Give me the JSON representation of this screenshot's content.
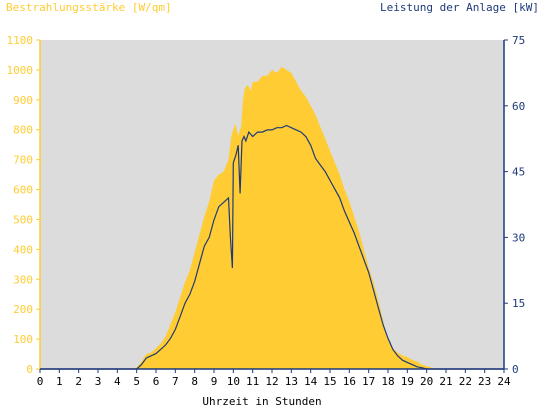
{
  "chart_data": {
    "type": "area",
    "title": "",
    "xlabel": "Uhrzeit in Stunden",
    "y_left_label": "Bestrahlungsstärke [W/qm]",
    "y_right_label": "Leistung der Anlage [kW]",
    "xlim": [
      0,
      24
    ],
    "ylim_left": [
      0,
      1100
    ],
    "ylim_right": [
      0,
      75
    ],
    "x_ticks": [
      0,
      1,
      2,
      3,
      4,
      5,
      6,
      7,
      8,
      9,
      10,
      11,
      12,
      13,
      14,
      15,
      16,
      17,
      18,
      19,
      20,
      21,
      22,
      23,
      24
    ],
    "y_left_ticks": [
      0,
      100,
      200,
      300,
      400,
      500,
      600,
      700,
      800,
      900,
      1000,
      1100
    ],
    "y_right_ticks": [
      0,
      15,
      30,
      45,
      60,
      75
    ],
    "grid": false,
    "colors": {
      "irradiance": "#ffcc33",
      "power": "#1f3a7a",
      "plot_bg": "#dcdcdc",
      "left_axis_text": "#ffcc33",
      "right_axis_text": "#1f3a7a"
    },
    "series": [
      {
        "name": "Bestrahlungsstärke [W/qm]",
        "axis": "left",
        "style": "area",
        "x": [
          0,
          4.5,
          5,
          5.25,
          5.5,
          5.75,
          6,
          6.25,
          6.5,
          6.75,
          7,
          7.25,
          7.5,
          7.75,
          8,
          8.25,
          8.5,
          8.75,
          9,
          9.25,
          9.5,
          9.75,
          9.9,
          10,
          10.1,
          10.25,
          10.4,
          10.5,
          10.6,
          10.75,
          10.9,
          11,
          11.25,
          11.5,
          11.75,
          12,
          12.25,
          12.5,
          12.75,
          13,
          13.25,
          13.5,
          13.75,
          14,
          14.25,
          14.5,
          14.75,
          15,
          15.25,
          15.5,
          15.75,
          16,
          16.25,
          16.5,
          16.75,
          17,
          17.25,
          17.5,
          17.75,
          18,
          18.25,
          18.5,
          18.75,
          19,
          19.25,
          19.5,
          19.75,
          20,
          20.25,
          20.5,
          21,
          24
        ],
        "values": [
          0,
          0,
          5,
          25,
          50,
          55,
          70,
          85,
          110,
          150,
          190,
          240,
          290,
          330,
          390,
          450,
          510,
          560,
          630,
          650,
          660,
          700,
          780,
          800,
          820,
          780,
          810,
          900,
          940,
          950,
          930,
          960,
          960,
          980,
          980,
          1000,
          990,
          1010,
          1000,
          990,
          960,
          930,
          910,
          880,
          850,
          810,
          770,
          730,
          690,
          650,
          600,
          560,
          510,
          460,
          400,
          340,
          290,
          230,
          160,
          100,
          70,
          55,
          45,
          40,
          30,
          25,
          15,
          10,
          5,
          0,
          0,
          0
        ]
      },
      {
        "name": "Leistung der Anlage [kW]",
        "axis": "right",
        "style": "line",
        "x": [
          0,
          5,
          5.25,
          5.5,
          5.75,
          6,
          6.25,
          6.5,
          6.75,
          7,
          7.25,
          7.5,
          7.75,
          8,
          8.25,
          8.5,
          8.75,
          9,
          9.25,
          9.5,
          9.75,
          9.85,
          9.95,
          10,
          10.15,
          10.25,
          10.35,
          10.45,
          10.55,
          10.65,
          10.8,
          11,
          11.25,
          11.5,
          11.75,
          12,
          12.25,
          12.5,
          12.75,
          13,
          13.25,
          13.5,
          13.75,
          14,
          14.25,
          14.5,
          14.75,
          15,
          15.25,
          15.5,
          15.75,
          16,
          16.25,
          16.5,
          16.75,
          17,
          17.25,
          17.5,
          17.75,
          18,
          18.25,
          18.5,
          18.75,
          19,
          19.25,
          19.5,
          19.75,
          20,
          20.25,
          24
        ],
        "values": [
          0,
          0,
          1,
          2.5,
          3,
          3.5,
          4.5,
          5.5,
          7,
          9,
          12,
          15,
          17,
          20,
          24,
          28,
          30,
          34,
          37,
          38,
          39,
          30,
          23,
          47,
          49,
          51,
          40,
          52,
          53,
          52,
          54,
          53,
          54,
          54,
          54.5,
          54.5,
          55,
          55,
          55.5,
          55,
          54.5,
          54,
          53,
          51,
          48,
          46.5,
          45,
          43,
          41,
          39,
          36,
          33.5,
          31,
          28,
          25,
          22,
          18,
          14,
          10,
          7,
          4.5,
          3,
          2,
          1.5,
          1,
          0.5,
          0.3,
          0,
          0,
          0
        ]
      }
    ]
  }
}
